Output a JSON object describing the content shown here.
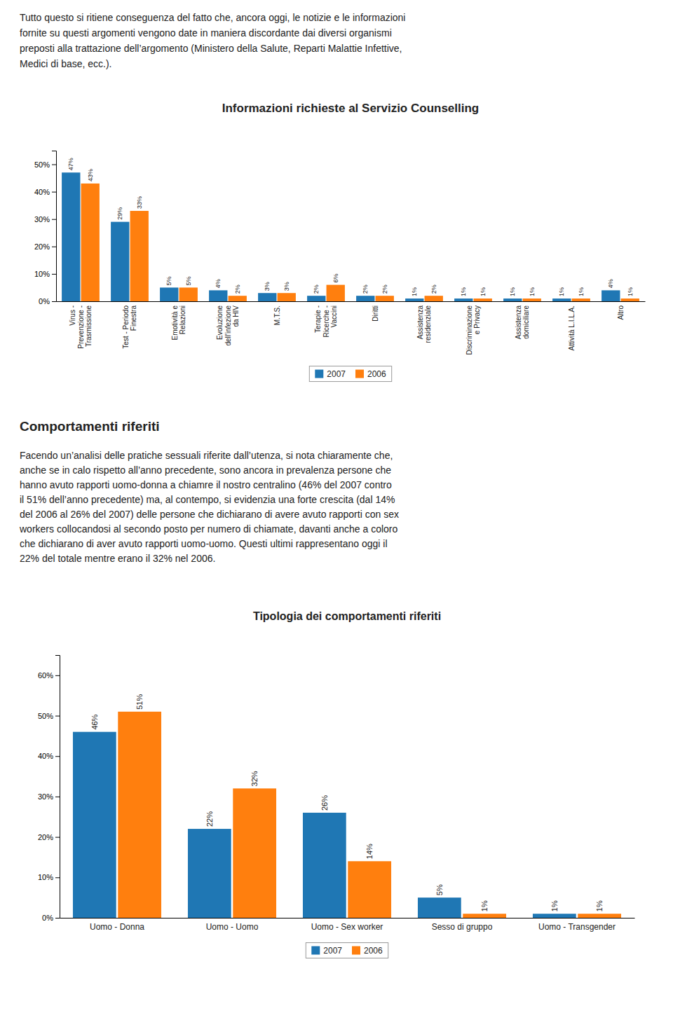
{
  "intro_text": "Tutto questo si ritiene conseguenza del fatto che, ancora oggi, le notizie e le informazioni\nfornite su questi argomenti vengono date in maniera discordante dai diversi organismi\npreposti alla trattazione dell’argomento (Ministero della Salute, Reparti Malattie Infettive,\nMedici di base, ecc.).",
  "chart_data": [
    {
      "type": "bar",
      "title": "Informazioni richieste al Servizio Counselling",
      "categories": [
        "Virus -\nPrevenzione -\nTrasmissione",
        "Test - Periodo\nFinestra",
        "Emotività e\nRelazioni",
        "Evoluzione\ndell'infezione\nda HIV",
        "M.T.S.",
        "Terapie -\nRicerche -\nVaccini",
        "Diritti",
        "Assistenza\nresidenziale",
        "Discriminazione\ne Privacy",
        "Assistenza\ndomiciliare",
        "Attività L.I.L.A.",
        "Altro"
      ],
      "series": [
        {
          "name": "2007",
          "values": [
            47,
            29,
            5,
            4,
            3,
            2,
            2,
            1,
            1,
            1,
            1,
            4
          ],
          "value_labels": [
            "47%",
            "29%",
            "5%",
            "4%",
            "3%",
            "2%",
            "2%",
            "1%",
            "1%",
            "1%",
            "1%",
            "4%"
          ]
        },
        {
          "name": "2006",
          "values": [
            43,
            33,
            5,
            2,
            3,
            6,
            2,
            2,
            1,
            1,
            1,
            1
          ],
          "value_labels": [
            "43%",
            "33%",
            "5%",
            "2%",
            "3%",
            "6%",
            "2%",
            "2%",
            "1%",
            "1%",
            "1%",
            "1%"
          ]
        }
      ],
      "ylim": [
        0,
        55
      ],
      "yticks": [
        {
          "value": 0,
          "label": "0%"
        },
        {
          "value": 10,
          "label": "10%"
        },
        {
          "value": 20,
          "label": "20%"
        },
        {
          "value": 30,
          "label": "30%"
        },
        {
          "value": 40,
          "label": "40%"
        },
        {
          "value": 50,
          "label": "50%"
        }
      ],
      "data_labels": true,
      "grid": false,
      "legend": "bottom"
    },
    {
      "type": "bar",
      "title": "Tipologia dei comportamenti riferiti",
      "categories": [
        "Uomo - Donna",
        "Uomo - Uomo",
        "Uomo - Sex worker",
        "Sesso di gruppo",
        "Uomo - Transgender"
      ],
      "series": [
        {
          "name": "2007",
          "values": [
            46,
            22,
            26,
            5,
            1
          ],
          "value_labels": [
            "46%",
            "22%",
            "26%",
            "5%",
            "1%"
          ]
        },
        {
          "name": "2006",
          "values": [
            51,
            32,
            14,
            1,
            1
          ],
          "value_labels": [
            "51%",
            "32%",
            "14%",
            "1%",
            "1%"
          ]
        }
      ],
      "ylim": [
        0,
        65
      ],
      "yticks": [
        {
          "value": 0,
          "label": "0%"
        },
        {
          "value": 10,
          "label": "10%"
        },
        {
          "value": 20,
          "label": "20%"
        },
        {
          "value": 30,
          "label": "30%"
        },
        {
          "value": 40,
          "label": "40%"
        },
        {
          "value": 50,
          "label": "50%"
        },
        {
          "value": 60,
          "label": "60%"
        }
      ],
      "data_labels": true,
      "grid": false,
      "legend": "bottom"
    }
  ],
  "section_title": "Comportamenti riferiti",
  "body_text": "Facendo un’analisi delle pratiche sessuali riferite dall’utenza, si nota chiaramente che,\nanche se in calo rispetto all’anno precedente, sono ancora in prevalenza persone che\nhanno avuto rapporti uomo-donna a chiamre il nostro centralino (46% del 2007 contro\nil 51% dell’anno precedente) ma, al contempo, si evidenzia una forte crescita (dal 14%\ndel 2006 al 26% del 2007) delle persone che dichiarano di avere avuto rapporti con sex\nworkers collocandosi al secondo posto per numero di chiamate, davanti anche a coloro\nche dichiarano di aver avuto rapporti uomo-uomo. Questi ultimi rappresentano oggi il\n22% del totale mentre erano il 32% nel 2006."
}
